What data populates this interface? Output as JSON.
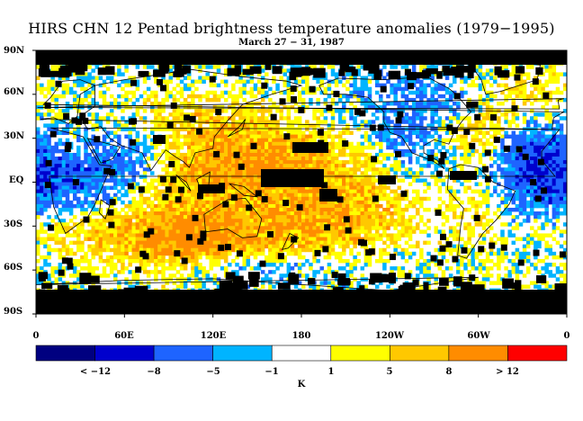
{
  "header": {
    "title": "HIRS CHN 12 Pentad brightness temperature anomalies (1979−1995)",
    "subtitle": "March 27 − 31, 1987"
  },
  "map": {
    "projection": "equirectangular",
    "lat_ticks": [
      "90N",
      "60N",
      "30N",
      "EQ",
      "30S",
      "60S",
      "90S"
    ],
    "lon_ticks": [
      "0",
      "60E",
      "120E",
      "180",
      "120W",
      "60W",
      "0"
    ],
    "missing_data_color": "#000000",
    "coastline_color": "#000000"
  },
  "colorbar": {
    "colors": [
      "#000080",
      "#0000cd",
      "#1e64ff",
      "#00b4ff",
      "#ffffff",
      "#ffff00",
      "#ffc800",
      "#ff8c00",
      "#ff0000"
    ],
    "labels": [
      "< −12",
      "−8",
      "−5",
      "−1",
      "1",
      "5",
      "8",
      "> 12"
    ],
    "unit": "K"
  }
}
